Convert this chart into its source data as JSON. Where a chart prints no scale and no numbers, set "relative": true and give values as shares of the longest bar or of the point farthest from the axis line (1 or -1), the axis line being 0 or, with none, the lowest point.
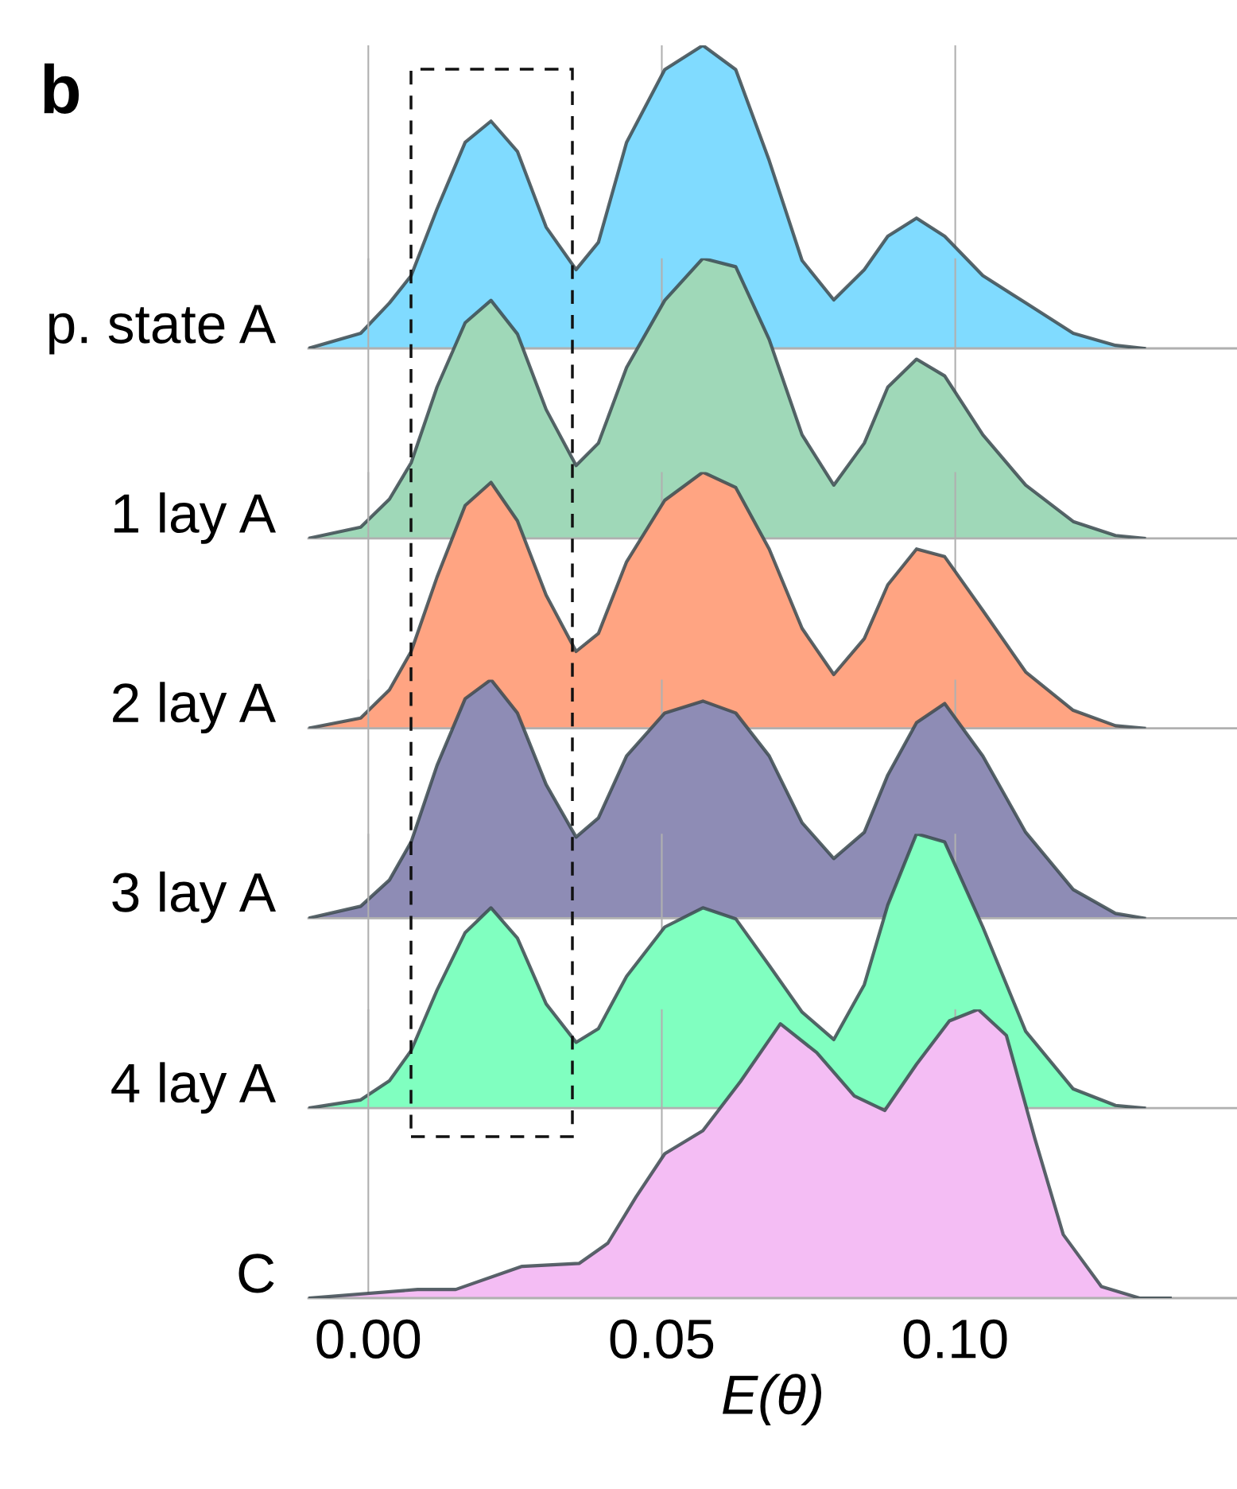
{
  "chart_data": [
    {
      "type": "area",
      "relative": true,
      "ylabel": "p. state A",
      "annotations": [
        "b"
      ],
      "xlim": [
        -0.0102,
        0.148
      ],
      "xticks": [
        0.0,
        0.05,
        0.1
      ],
      "tick_labels": false,
      "grid": "x",
      "legend": false,
      "series": [
        {
          "color": "#80dbff",
          "x": [
            -0.0102,
            -0.0013,
            0.0036,
            0.0073,
            0.0117,
            0.0165,
            0.0209,
            0.0254,
            0.0303,
            0.0354,
            0.0392,
            0.044,
            0.0505,
            0.057,
            0.0626,
            0.0683,
            0.0739,
            0.0793,
            0.0845,
            0.0885,
            0.0934,
            0.0982,
            0.1047,
            0.112,
            0.1201,
            0.1273,
            0.1322
          ],
          "values": [
            0,
            0.05,
            0.15,
            0.24,
            0.46,
            0.68,
            0.75,
            0.65,
            0.4,
            0.26,
            0.35,
            0.68,
            0.92,
            1,
            0.92,
            0.62,
            0.29,
            0.16,
            0.26,
            0.37,
            0.43,
            0.37,
            0.24,
            0.15,
            0.05,
            0.01,
            0
          ]
        }
      ]
    },
    {
      "type": "area",
      "relative": true,
      "ylabel": "1 lay A",
      "xlim": [
        -0.0102,
        0.148
      ],
      "xticks": [
        0.0,
        0.05,
        0.1
      ],
      "tick_labels": false,
      "grid": "x",
      "legend": false,
      "series": [
        {
          "color": "#9fd8b8",
          "x": [
            -0.0102,
            -0.0013,
            0.0036,
            0.0073,
            0.0117,
            0.0165,
            0.0209,
            0.0254,
            0.0303,
            0.0354,
            0.0392,
            0.044,
            0.0505,
            0.057,
            0.0626,
            0.0683,
            0.0739,
            0.0793,
            0.0845,
            0.0885,
            0.0934,
            0.0982,
            0.1047,
            0.112,
            0.1201,
            0.1273,
            0.1322
          ],
          "values": [
            0,
            0.04,
            0.14,
            0.27,
            0.54,
            0.77,
            0.85,
            0.73,
            0.46,
            0.26,
            0.34,
            0.61,
            0.85,
            1,
            0.97,
            0.71,
            0.37,
            0.19,
            0.34,
            0.54,
            0.64,
            0.58,
            0.37,
            0.19,
            0.06,
            0.01,
            0
          ]
        }
      ]
    },
    {
      "type": "area",
      "relative": true,
      "ylabel": "2 lay A",
      "xlim": [
        -0.0102,
        0.148
      ],
      "xticks": [
        0.0,
        0.05,
        0.1
      ],
      "tick_labels": false,
      "grid": "x",
      "legend": false,
      "series": [
        {
          "color": "#ffa482",
          "x": [
            -0.0102,
            -0.0013,
            0.0036,
            0.0073,
            0.0117,
            0.0165,
            0.0209,
            0.0254,
            0.0303,
            0.0354,
            0.0392,
            0.044,
            0.0505,
            0.057,
            0.0626,
            0.0683,
            0.0739,
            0.0793,
            0.0845,
            0.0885,
            0.0934,
            0.0982,
            0.1047,
            0.112,
            0.1201,
            0.1273,
            0.1322
          ],
          "values": [
            0,
            0.04,
            0.15,
            0.3,
            0.59,
            0.87,
            0.96,
            0.81,
            0.52,
            0.3,
            0.37,
            0.65,
            0.89,
            1,
            0.94,
            0.7,
            0.39,
            0.21,
            0.35,
            0.56,
            0.7,
            0.67,
            0.46,
            0.22,
            0.07,
            0.01,
            0
          ]
        }
      ]
    },
    {
      "type": "area",
      "relative": true,
      "ylabel": "3 lay A",
      "xlim": [
        -0.0102,
        0.148
      ],
      "xticks": [
        0.0,
        0.05,
        0.1
      ],
      "tick_labels": false,
      "grid": "x",
      "legend": false,
      "series": [
        {
          "color": "#8e8cb5",
          "x": [
            -0.0102,
            -0.0013,
            0.0036,
            0.0073,
            0.0117,
            0.0165,
            0.0209,
            0.0254,
            0.0303,
            0.0354,
            0.0392,
            0.044,
            0.0505,
            0.057,
            0.0626,
            0.0683,
            0.0739,
            0.0793,
            0.0845,
            0.0885,
            0.0934,
            0.0982,
            0.1047,
            0.112,
            0.1201,
            0.1273,
            0.1322
          ],
          "values": [
            0,
            0.05,
            0.16,
            0.32,
            0.64,
            0.92,
            1,
            0.86,
            0.56,
            0.34,
            0.42,
            0.68,
            0.86,
            0.91,
            0.86,
            0.68,
            0.4,
            0.25,
            0.36,
            0.6,
            0.82,
            0.9,
            0.68,
            0.36,
            0.12,
            0.02,
            0
          ]
        }
      ]
    },
    {
      "type": "area",
      "relative": true,
      "ylabel": "4 lay A",
      "xlim": [
        -0.0102,
        0.148
      ],
      "xticks": [
        0.0,
        0.05,
        0.1
      ],
      "tick_labels": false,
      "grid": "x",
      "legend": false,
      "series": [
        {
          "color": "#80ffc0",
          "x": [
            -0.0102,
            -0.0013,
            0.0036,
            0.0073,
            0.0117,
            0.0165,
            0.0209,
            0.0254,
            0.0303,
            0.0354,
            0.0392,
            0.044,
            0.0505,
            0.057,
            0.0626,
            0.0683,
            0.0739,
            0.0793,
            0.0845,
            0.0885,
            0.0934,
            0.0982,
            0.1047,
            0.112,
            0.1201,
            0.1273,
            0.1322
          ],
          "values": [
            0,
            0.03,
            0.1,
            0.21,
            0.43,
            0.64,
            0.73,
            0.62,
            0.38,
            0.24,
            0.29,
            0.48,
            0.66,
            0.73,
            0.69,
            0.52,
            0.35,
            0.25,
            0.45,
            0.74,
            1,
            0.97,
            0.66,
            0.28,
            0.07,
            0.01,
            0
          ]
        }
      ]
    },
    {
      "type": "area",
      "relative": true,
      "ylabel": "C",
      "xlabel": "E(θ)",
      "xlim": [
        -0.0102,
        0.148
      ],
      "xticks": [
        {
          "value": 0.0,
          "label": "0.00"
        },
        0.05,
        {
          "value": 0.1,
          "label": "0.10"
        }
      ],
      "tick_labels": "x",
      "grid": "x",
      "legend": false,
      "series": [
        {
          "color": "#f4bdf4",
          "x": [
            -0.0102,
            0.0084,
            0.0149,
            0.0262,
            0.0359,
            0.0408,
            0.0456,
            0.0505,
            0.057,
            0.0634,
            0.0702,
            0.0764,
            0.0828,
            0.088,
            0.0934,
            0.099,
            0.1039,
            0.1087,
            0.1136,
            0.1184,
            0.1249,
            0.1314,
            0.1366
          ],
          "values": [
            0,
            0.03,
            0.03,
            0.11,
            0.12,
            0.19,
            0.35,
            0.5,
            0.58,
            0.75,
            0.95,
            0.85,
            0.7,
            0.65,
            0.81,
            0.96,
            1,
            0.91,
            0.55,
            0.22,
            0.04,
            0,
            0
          ]
        }
      ]
    }
  ]
}
